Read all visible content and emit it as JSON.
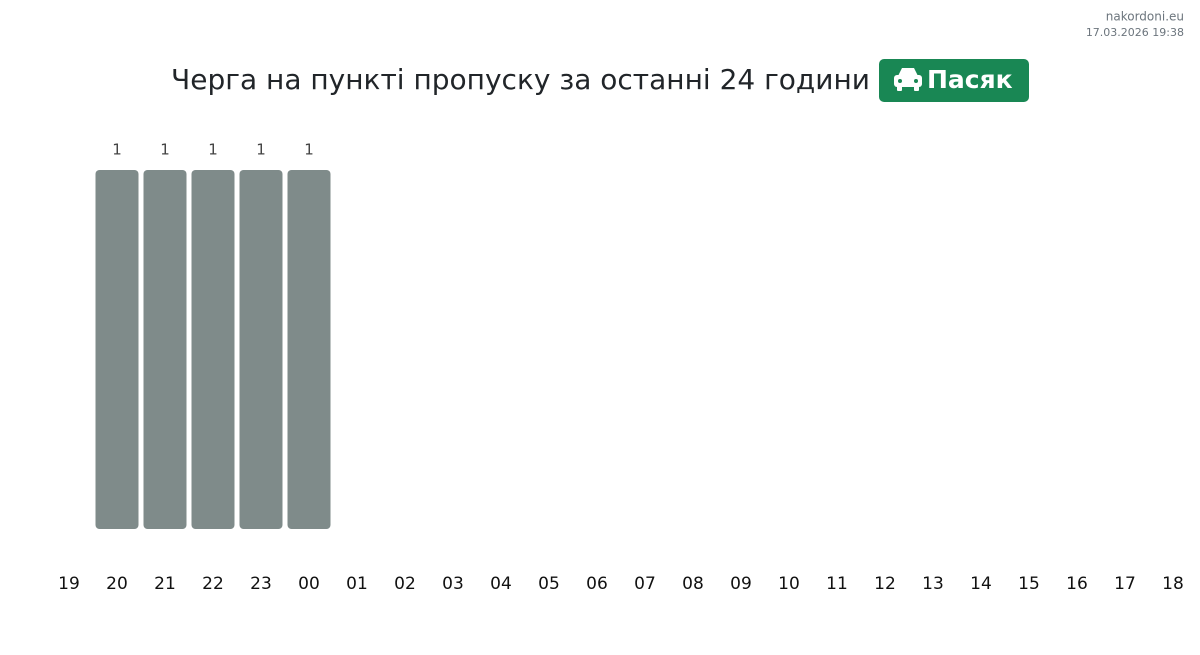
{
  "site": "nakordoni.eu",
  "timestamp": "17.03.2026 19:38",
  "chart_data": {
    "type": "bar",
    "title": "Черга на пункті пропуску за останні 24 години",
    "badge": "Пасяк",
    "categories": [
      "19",
      "20",
      "21",
      "22",
      "23",
      "00",
      "01",
      "02",
      "03",
      "04",
      "05",
      "06",
      "07",
      "08",
      "09",
      "10",
      "11",
      "12",
      "13",
      "14",
      "15",
      "16",
      "17",
      "18"
    ],
    "values": [
      null,
      1,
      1,
      1,
      1,
      1,
      null,
      null,
      null,
      null,
      null,
      null,
      null,
      null,
      null,
      null,
      null,
      null,
      null,
      null,
      null,
      null,
      null,
      null
    ],
    "color": "#7f8b8a",
    "ylim": [
      0,
      1
    ]
  }
}
